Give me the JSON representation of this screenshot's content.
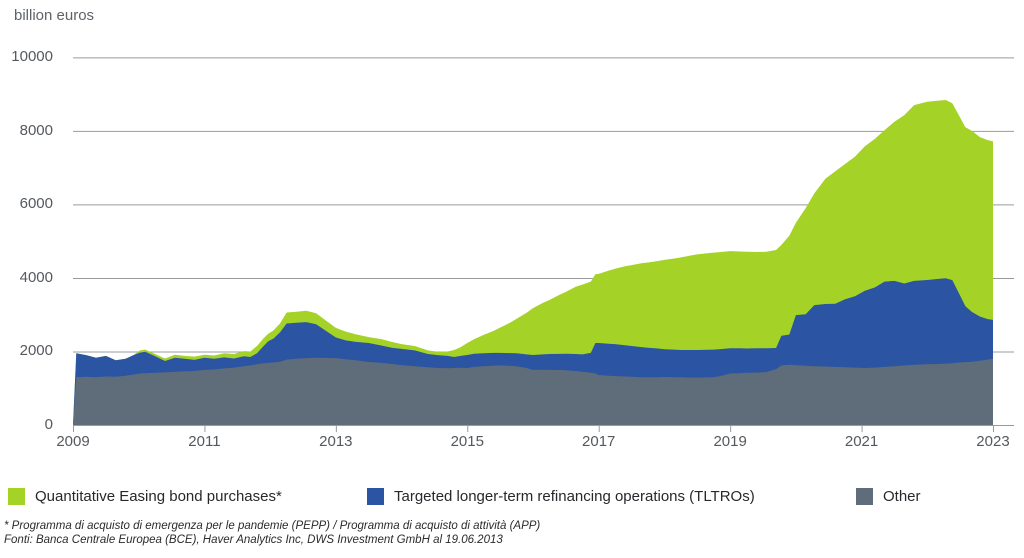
{
  "header": {
    "unit_label": "billion euros"
  },
  "colors": {
    "qe": "#a5d226",
    "tltro": "#2b54a2",
    "other": "#5e6d79",
    "grid": "#989b9e",
    "axis_text": "#55595e",
    "legend_text": "#26282b",
    "footnote_text": "#2b2b2b"
  },
  "legend": {
    "items": [
      {
        "label": "Quantitative Easing bond purchases*",
        "series": "qe"
      },
      {
        "label": "Targeted longer-term refinancing operations (TLTROs)",
        "series": "tltro"
      },
      {
        "label": "Other",
        "series": "other"
      }
    ]
  },
  "footnotes": {
    "line1": "* Programma di acquisto di emergenza per le pandemie (PEPP) / Programma di acquisto di attività (APP)",
    "line2": "Fonti: Banca Centrale Europea (BCE), Haver Analytics Inc, DWS Investment GmbH al 19.06.2013"
  },
  "chart_data": {
    "type": "area",
    "stacked": true,
    "title": "",
    "unit": "billion euros",
    "xlabel": "",
    "ylabel": "billion euros",
    "ylim": [
      0,
      10000
    ],
    "xlim": [
      2009,
      2023
    ],
    "y_ticks": [
      0,
      2000,
      4000,
      6000,
      8000,
      10000
    ],
    "x_ticks": [
      2009,
      2011,
      2013,
      2015,
      2017,
      2019,
      2021,
      2023
    ],
    "grid": true,
    "legend_position": "bottom",
    "x": [
      2009.0,
      2009.05,
      2009.2,
      2009.35,
      2009.5,
      2009.65,
      2009.8,
      2009.92,
      2010.02,
      2010.1,
      2010.25,
      2010.4,
      2010.55,
      2010.7,
      2010.85,
      2011.0,
      2011.15,
      2011.3,
      2011.45,
      2011.6,
      2011.7,
      2011.8,
      2011.9,
      2011.97,
      2012.05,
      2012.15,
      2012.25,
      2012.4,
      2012.55,
      2012.7,
      2012.85,
      2013.0,
      2013.15,
      2013.3,
      2013.5,
      2013.7,
      2013.85,
      2014.0,
      2014.2,
      2014.4,
      2014.55,
      2014.7,
      2014.8,
      2014.9,
      2015.0,
      2015.1,
      2015.25,
      2015.4,
      2015.5,
      2015.65,
      2015.75,
      2015.9,
      2016.0,
      2016.15,
      2016.25,
      2016.4,
      2016.5,
      2016.65,
      2016.75,
      2016.88,
      2016.95,
      2017.0,
      2017.15,
      2017.25,
      2017.4,
      2017.5,
      2017.65,
      2017.75,
      2017.9,
      2018.0,
      2018.15,
      2018.25,
      2018.4,
      2018.5,
      2018.65,
      2018.75,
      2018.9,
      2019.0,
      2019.15,
      2019.25,
      2019.4,
      2019.55,
      2019.7,
      2019.78,
      2019.9,
      2020.0,
      2020.15,
      2020.28,
      2020.45,
      2020.6,
      2020.75,
      2020.9,
      2021.05,
      2021.2,
      2021.35,
      2021.5,
      2021.65,
      2021.8,
      2022.0,
      2022.15,
      2022.28,
      2022.38,
      2022.48,
      2022.58,
      2022.68,
      2022.8,
      2022.92,
      2023.0
    ],
    "series": [
      {
        "name": "Other",
        "color": "#5e6d79",
        "values": [
          0,
          1300,
          1310,
          1300,
          1320,
          1310,
          1340,
          1370,
          1400,
          1410,
          1420,
          1430,
          1450,
          1460,
          1470,
          1500,
          1510,
          1540,
          1560,
          1600,
          1620,
          1650,
          1680,
          1690,
          1700,
          1720,
          1780,
          1800,
          1820,
          1830,
          1825,
          1820,
          1790,
          1760,
          1714,
          1690,
          1660,
          1630,
          1600,
          1570,
          1550,
          1545,
          1550,
          1555,
          1550,
          1580,
          1600,
          1615,
          1620,
          1610,
          1600,
          1550,
          1500,
          1500,
          1500,
          1495,
          1490,
          1470,
          1450,
          1420,
          1400,
          1360,
          1340,
          1330,
          1320,
          1310,
          1300,
          1300,
          1300,
          1306,
          1300,
          1300,
          1290,
          1290,
          1295,
          1300,
          1350,
          1400,
          1410,
          1420,
          1425,
          1440,
          1520,
          1620,
          1640,
          1630,
          1610,
          1600,
          1590,
          1580,
          1570,
          1560,
          1550,
          1560,
          1580,
          1600,
          1620,
          1640,
          1650,
          1660,
          1670,
          1680,
          1700,
          1710,
          1720,
          1750,
          1780,
          1800
        ]
      },
      {
        "name": "Targeted longer-term refinancing operations (TLTROs)",
        "color": "#2b54a2",
        "values": [
          0,
          650,
          590,
          530,
          560,
          450,
          460,
          530,
          570,
          580,
          450,
          310,
          380,
          340,
          300,
          330,
          290,
          300,
          250,
          270,
          230,
          300,
          470,
          590,
          650,
          800,
          980,
          980,
          980,
          910,
          735,
          560,
          510,
          500,
          516,
          470,
          440,
          440,
          430,
          360,
          350,
          335,
          300,
          325,
          354,
          360,
          350,
          345,
          340,
          345,
          350,
          370,
          404,
          420,
          430,
          440,
          450,
          460,
          470,
          540,
          830,
          870,
          870,
          870,
          850,
          840,
          820,
          800,
          780,
          754,
          750,
          740,
          750,
          750,
          750,
          750,
          720,
          690,
          675,
          660,
          660,
          650,
          574,
          810,
          820,
          1360,
          1400,
          1660,
          1700,
          1720,
          1850,
          1940,
          2100,
          2180,
          2320,
          2320,
          2230,
          2280,
          2294,
          2310,
          2320,
          2260,
          1890,
          1520,
          1354,
          1200,
          1100,
          1060
        ]
      },
      {
        "name": "Quantitative Easing bond purchases*",
        "color": "#a5d226",
        "values": [
          0,
          0,
          0,
          0,
          0,
          0,
          0,
          0,
          60,
          60,
          60,
          70,
          80,
          80,
          90,
          80,
          90,
          110,
          120,
          140,
          150,
          200,
          210,
          200,
          220,
          240,
          300,
          300,
          310,
          300,
          280,
          260,
          240,
          210,
          160,
          170,
          160,
          130,
          120,
          100,
          90,
          120,
          190,
          240,
          326,
          390,
          500,
          600,
          690,
          825,
          940,
          1130,
          1276,
          1400,
          1470,
          1605,
          1680,
          1830,
          1900,
          1940,
          1870,
          1880,
          1990,
          2050,
          2150,
          2200,
          2280,
          2320,
          2380,
          2430,
          2480,
          2520,
          2570,
          2600,
          2625,
          2640,
          2645,
          2640,
          2635,
          2635,
          2620,
          2620,
          2666,
          2470,
          2690,
          2510,
          2890,
          3040,
          3410,
          3600,
          3680,
          3800,
          3930,
          4040,
          4120,
          4330,
          4580,
          4780,
          4846,
          4850,
          4850,
          4810,
          4840,
          4870,
          4926,
          4880,
          4870,
          4860
        ]
      }
    ]
  }
}
